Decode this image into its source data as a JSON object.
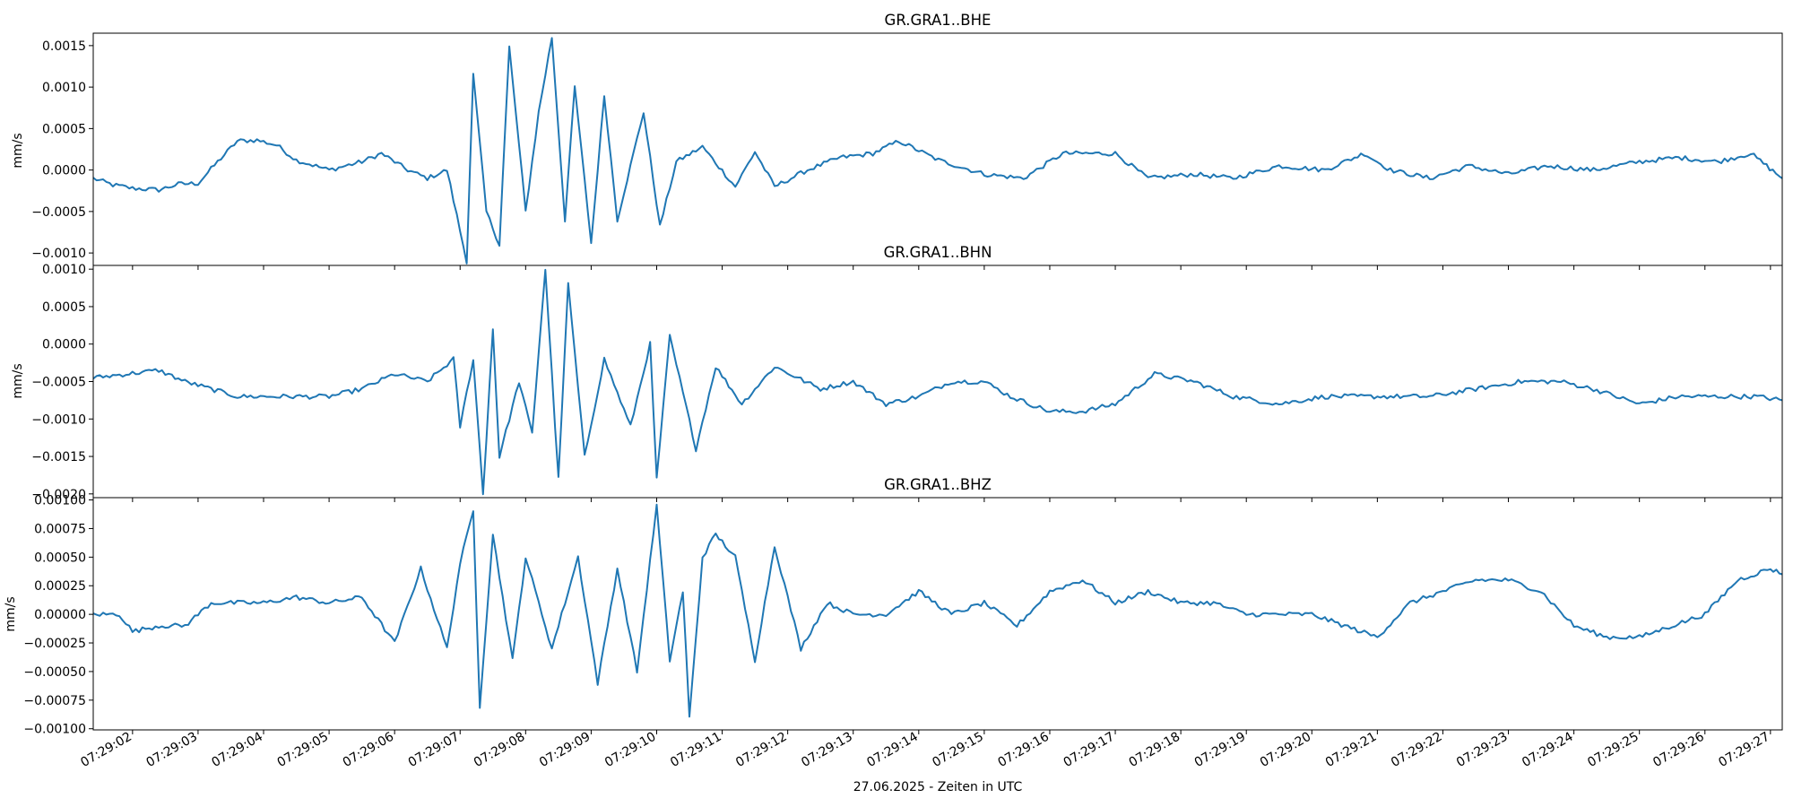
{
  "chart_data": [
    {
      "type": "line",
      "title": "GR.GRA1..BHE",
      "ylabel": "mm/s",
      "ylim": [
        -0.00115,
        0.00165
      ],
      "yticks": [
        -0.001,
        -0.0005,
        0.0,
        0.0005,
        0.001,
        0.0015
      ],
      "ytick_labels": [
        "−0.0010",
        "−0.0005",
        "0.0000",
        "0.0005",
        "0.0010",
        "0.0015"
      ],
      "color": "#1f77b4",
      "x_range": [
        "07:29:01.40",
        "07:29:27.18"
      ],
      "keypoints": [
        [
          "07:29:01.40",
          -0.0001
        ],
        [
          "07:29:01.70",
          -0.00018
        ],
        [
          "07:29:02.00",
          -0.00022
        ],
        [
          "07:29:02.40",
          -0.00024
        ],
        [
          "07:29:02.70",
          -0.00017
        ],
        [
          "07:29:03.00",
          -0.00016
        ],
        [
          "07:29:03.30",
          0.0001
        ],
        [
          "07:29:03.60",
          0.00035
        ],
        [
          "07:29:03.90",
          0.00036
        ],
        [
          "07:29:04.20",
          0.0003
        ],
        [
          "07:29:04.50",
          0.00012
        ],
        [
          "07:29:05.00",
          0.0
        ],
        [
          "07:29:05.50",
          0.0001
        ],
        [
          "07:29:05.80",
          0.0002
        ],
        [
          "07:29:06.20",
          0.0
        ],
        [
          "07:29:06.50",
          -0.0001
        ],
        [
          "07:29:06.80",
          0.0
        ],
        [
          "07:29:07.10",
          -0.0011
        ],
        [
          "07:29:07.20",
          0.00115
        ],
        [
          "07:29:07.40",
          -0.0005
        ],
        [
          "07:29:07.60",
          -0.0009
        ],
        [
          "07:29:07.75",
          0.00148
        ],
        [
          "07:29:08.00",
          -0.0005
        ],
        [
          "07:29:08.20",
          0.0007
        ],
        [
          "07:29:08.40",
          0.0016
        ],
        [
          "07:29:08.60",
          -0.0006
        ],
        [
          "07:29:08.75",
          0.001
        ],
        [
          "07:29:09.00",
          -0.00088
        ],
        [
          "07:29:09.20",
          0.0009
        ],
        [
          "07:29:09.40",
          -0.0006
        ],
        [
          "07:29:09.80",
          0.0007
        ],
        [
          "07:29:10.05",
          -0.00068
        ],
        [
          "07:29:10.30",
          0.0001
        ],
        [
          "07:29:10.70",
          0.00028
        ],
        [
          "07:29:11.20",
          -0.0002
        ],
        [
          "07:29:11.50",
          0.00022
        ],
        [
          "07:29:11.80",
          -0.0002
        ],
        [
          "07:29:12.30",
          0.0
        ],
        [
          "07:29:12.80",
          0.00015
        ],
        [
          "07:29:13.30",
          0.0002
        ],
        [
          "07:29:13.70",
          0.00035
        ],
        [
          "07:29:14.30",
          0.00012
        ],
        [
          "07:29:15.00",
          -5e-05
        ],
        [
          "07:29:15.60",
          -0.0001
        ],
        [
          "07:29:16.20",
          0.0002
        ],
        [
          "07:29:17.00",
          0.0002
        ],
        [
          "07:29:17.50",
          -0.0001
        ],
        [
          "07:29:18.20",
          -5e-05
        ],
        [
          "07:29:18.80",
          -0.0001
        ],
        [
          "07:29:19.50",
          5e-05
        ],
        [
          "07:29:20.20",
          0.0
        ],
        [
          "07:29:20.80",
          0.0002
        ],
        [
          "07:29:21.20",
          0.0
        ],
        [
          "07:29:21.80",
          -0.0001
        ],
        [
          "07:29:22.40",
          5e-05
        ],
        [
          "07:29:23.00",
          -5e-05
        ],
        [
          "07:29:23.60",
          5e-05
        ],
        [
          "07:29:24.30",
          0.0
        ],
        [
          "07:29:25.00",
          0.0001
        ],
        [
          "07:29:25.60",
          0.00015
        ],
        [
          "07:29:26.20",
          0.0001
        ],
        [
          "07:29:26.70",
          0.0002
        ],
        [
          "07:29:27.18",
          -0.0001
        ]
      ]
    },
    {
      "type": "line",
      "title": "GR.GRA1..BHN",
      "ylabel": "mm/s",
      "ylim": [
        -0.00205,
        0.00105
      ],
      "yticks": [
        -0.002,
        -0.0015,
        -0.001,
        -0.0005,
        0.0,
        0.0005,
        0.001
      ],
      "ytick_labels": [
        "−0.0020",
        "−0.0015",
        "−0.0010",
        "−0.0005",
        "0.0000",
        "0.0005",
        "0.0010"
      ],
      "color": "#1f77b4",
      "x_range": [
        "07:29:01.40",
        "07:29:27.18"
      ],
      "keypoints": [
        [
          "07:29:01.40",
          -0.00045
        ],
        [
          "07:29:01.90",
          -0.0004
        ],
        [
          "07:29:02.40",
          -0.00035
        ],
        [
          "07:29:02.80",
          -0.0005
        ],
        [
          "07:29:03.20",
          -0.0006
        ],
        [
          "07:29:03.60",
          -0.0007
        ],
        [
          "07:29:04.30",
          -0.0007
        ],
        [
          "07:29:05.00",
          -0.0007
        ],
        [
          "07:29:05.50",
          -0.0006
        ],
        [
          "07:29:06.00",
          -0.0004
        ],
        [
          "07:29:06.50",
          -0.0005
        ],
        [
          "07:29:06.90",
          -0.0002
        ],
        [
          "07:29:07.00",
          -0.0011
        ],
        [
          "07:29:07.20",
          -0.0002
        ],
        [
          "07:29:07.35",
          -0.002
        ],
        [
          "07:29:07.50",
          0.0002
        ],
        [
          "07:29:07.60",
          -0.0015
        ],
        [
          "07:29:07.90",
          -0.0005
        ],
        [
          "07:29:08.10",
          -0.0012
        ],
        [
          "07:29:08.30",
          0.001
        ],
        [
          "07:29:08.50",
          -0.0018
        ],
        [
          "07:29:08.65",
          0.0008
        ],
        [
          "07:29:08.90",
          -0.0015
        ],
        [
          "07:29:09.20",
          -0.0002
        ],
        [
          "07:29:09.60",
          -0.0011
        ],
        [
          "07:29:09.90",
          0.0
        ],
        [
          "07:29:10.00",
          -0.0018
        ],
        [
          "07:29:10.20",
          0.0001
        ],
        [
          "07:29:10.60",
          -0.0014
        ],
        [
          "07:29:10.90",
          -0.0003
        ],
        [
          "07:29:11.30",
          -0.0008
        ],
        [
          "07:29:11.80",
          -0.0003
        ],
        [
          "07:29:12.50",
          -0.0006
        ],
        [
          "07:29:13.00",
          -0.0005
        ],
        [
          "07:29:13.50",
          -0.0008
        ],
        [
          "07:29:14.00",
          -0.0007
        ],
        [
          "07:29:14.50",
          -0.0005
        ],
        [
          "07:29:15.00",
          -0.0005
        ],
        [
          "07:29:15.40",
          -0.0007
        ],
        [
          "07:29:16.00",
          -0.0009
        ],
        [
          "07:29:16.50",
          -0.0009
        ],
        [
          "07:29:17.00",
          -0.0008
        ],
        [
          "07:29:17.60",
          -0.0004
        ],
        [
          "07:29:18.20",
          -0.0005
        ],
        [
          "07:29:18.80",
          -0.0007
        ],
        [
          "07:29:19.50",
          -0.0008
        ],
        [
          "07:29:20.20",
          -0.0007
        ],
        [
          "07:29:21.00",
          -0.0007
        ],
        [
          "07:29:21.80",
          -0.0007
        ],
        [
          "07:29:22.50",
          -0.0006
        ],
        [
          "07:29:23.20",
          -0.0005
        ],
        [
          "07:29:23.80",
          -0.0005
        ],
        [
          "07:29:24.30",
          -0.0006
        ],
        [
          "07:29:25.00",
          -0.0008
        ],
        [
          "07:29:25.60",
          -0.0007
        ],
        [
          "07:29:26.20",
          -0.0007
        ],
        [
          "07:29:26.80",
          -0.0007
        ],
        [
          "07:29:27.18",
          -0.00075
        ]
      ]
    },
    {
      "type": "line",
      "title": "GR.GRA1..BHZ",
      "ylabel": "mm/s",
      "ylim": [
        -0.00101,
        0.00102
      ],
      "yticks": [
        -0.001,
        -0.00075,
        -0.0005,
        -0.00025,
        0.0,
        0.00025,
        0.0005,
        0.00075,
        0.001
      ],
      "ytick_labels": [
        "−0.00100",
        "−0.00075",
        "−0.00050",
        "−0.00025",
        "0.00000",
        "0.00025",
        "0.00050",
        "0.00075",
        "0.00100"
      ],
      "color": "#1f77b4",
      "x_range": [
        "07:29:01.40",
        "07:29:27.18"
      ],
      "keypoints": [
        [
          "07:29:01.40",
          0.0
        ],
        [
          "07:29:01.80",
          0.0
        ],
        [
          "07:29:02.00",
          -0.00015
        ],
        [
          "07:29:02.40",
          -0.0001
        ],
        [
          "07:29:02.80",
          -0.0001
        ],
        [
          "07:29:03.20",
          0.0001
        ],
        [
          "07:29:03.60",
          0.0001
        ],
        [
          "07:29:04.00",
          0.0001
        ],
        [
          "07:29:04.50",
          0.00015
        ],
        [
          "07:29:05.00",
          0.0001
        ],
        [
          "07:29:05.50",
          0.00015
        ],
        [
          "07:29:06.00",
          -0.00025
        ],
        [
          "07:29:06.40",
          0.0004
        ],
        [
          "07:29:06.80",
          -0.0003
        ],
        [
          "07:29:07.00",
          0.00045
        ],
        [
          "07:29:07.20",
          0.0009
        ],
        [
          "07:29:07.30",
          -0.0008
        ],
        [
          "07:29:07.50",
          0.0007
        ],
        [
          "07:29:07.80",
          -0.0004
        ],
        [
          "07:29:08.00",
          0.0005
        ],
        [
          "07:29:08.40",
          -0.0003
        ],
        [
          "07:29:08.80",
          0.0005
        ],
        [
          "07:29:09.10",
          -0.0006
        ],
        [
          "07:29:09.40",
          0.0004
        ],
        [
          "07:29:09.70",
          -0.0005
        ],
        [
          "07:29:10.00",
          0.00095
        ],
        [
          "07:29:10.20",
          -0.0004
        ],
        [
          "07:29:10.40",
          0.0002
        ],
        [
          "07:29:10.50",
          -0.0009
        ],
        [
          "07:29:10.70",
          0.0005
        ],
        [
          "07:29:10.90",
          0.0007
        ],
        [
          "07:29:11.20",
          0.0005
        ],
        [
          "07:29:11.50",
          -0.0004
        ],
        [
          "07:29:11.80",
          0.0006
        ],
        [
          "07:29:12.20",
          -0.0003
        ],
        [
          "07:29:12.60",
          0.0001
        ],
        [
          "07:29:13.00",
          0.0
        ],
        [
          "07:29:13.50",
          0.0
        ],
        [
          "07:29:14.00",
          0.0002
        ],
        [
          "07:29:14.50",
          0.0
        ],
        [
          "07:29:15.00",
          0.0001
        ],
        [
          "07:29:15.50",
          -0.0001
        ],
        [
          "07:29:16.00",
          0.0002
        ],
        [
          "07:29:16.50",
          0.0003
        ],
        [
          "07:29:17.00",
          0.0001
        ],
        [
          "07:29:17.50",
          0.0002
        ],
        [
          "07:29:18.00",
          0.0001
        ],
        [
          "07:29:18.50",
          0.0001
        ],
        [
          "07:29:19.00",
          0.0
        ],
        [
          "07:29:19.50",
          0.0
        ],
        [
          "07:29:20.00",
          0.0
        ],
        [
          "07:29:20.50",
          -0.0001
        ],
        [
          "07:29:21.00",
          -0.0002
        ],
        [
          "07:29:21.50",
          0.0001
        ],
        [
          "07:29:22.00",
          0.0002
        ],
        [
          "07:29:22.50",
          0.0003
        ],
        [
          "07:29:23.00",
          0.0003
        ],
        [
          "07:29:23.50",
          0.0002
        ],
        [
          "07:29:24.00",
          -0.0001
        ],
        [
          "07:29:24.50",
          -0.0002
        ],
        [
          "07:29:25.00",
          -0.0002
        ],
        [
          "07:29:25.50",
          -0.0001
        ],
        [
          "07:29:26.00",
          0.0
        ],
        [
          "07:29:26.50",
          0.0003
        ],
        [
          "07:29:27.00",
          0.0004
        ],
        [
          "07:29:27.18",
          0.00035
        ]
      ]
    }
  ],
  "x_axis": {
    "xlabel": "27.06.2025 - Zeiten in UTC",
    "tick_labels": [
      "07:29:02",
      "07:29:03",
      "07:29:04",
      "07:29:05",
      "07:29:06",
      "07:29:07",
      "07:29:08",
      "07:29:09",
      "07:29:10",
      "07:29:11",
      "07:29:12",
      "07:29:13",
      "07:29:14",
      "07:29:15",
      "07:29:16",
      "07:29:17",
      "07:29:18",
      "07:29:19",
      "07:29:20",
      "07:29:21",
      "07:29:22",
      "07:29:23",
      "07:29:24",
      "07:29:25",
      "07:29:26",
      "07:29:27"
    ],
    "tick_rotation_deg": 30
  }
}
